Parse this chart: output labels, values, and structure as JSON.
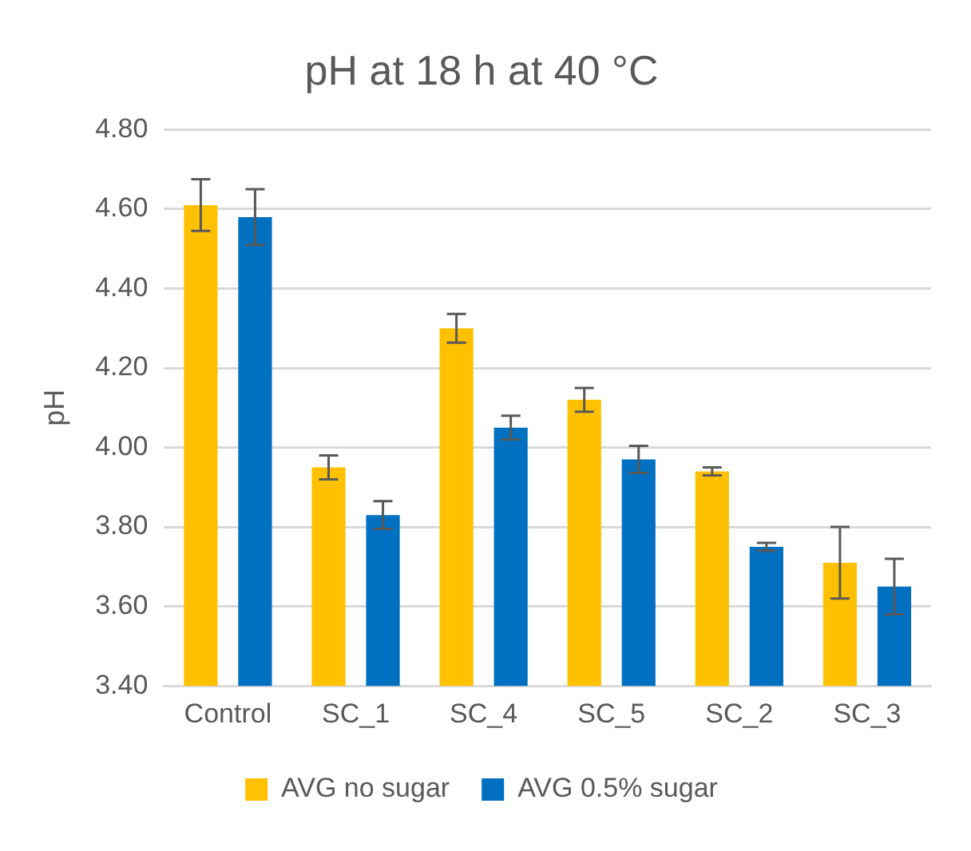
{
  "chart_data": {
    "type": "bar",
    "title": "pH at 18 h at 40 °C",
    "ylabel": "pH",
    "categories": [
      "Control",
      "SC_1",
      "SC_4",
      "SC_5",
      "SC_2",
      "SC_3"
    ],
    "series": [
      {
        "name": "AVG no sugar",
        "color": "#ffc000",
        "values": [
          4.61,
          3.95,
          4.3,
          4.12,
          3.94,
          3.71
        ],
        "errors": [
          0.065,
          0.03,
          0.036,
          0.03,
          0.01,
          0.09
        ]
      },
      {
        "name": "AVG 0.5% sugar",
        "color": "#0070c0",
        "values": [
          4.58,
          3.83,
          4.05,
          3.97,
          3.75,
          3.65
        ],
        "errors": [
          0.07,
          0.035,
          0.03,
          0.034,
          0.01,
          0.07
        ]
      }
    ],
    "ylim": [
      3.4,
      4.8
    ],
    "yticks": [
      {
        "value": 3.4,
        "label": "3.40"
      },
      {
        "value": 3.6,
        "label": "3.60"
      },
      {
        "value": 3.8,
        "label": "3.80"
      },
      {
        "value": 4.0,
        "label": "4.00"
      },
      {
        "value": 4.2,
        "label": "4.20"
      },
      {
        "value": 4.4,
        "label": "4.40"
      },
      {
        "value": 4.6,
        "label": "4.60"
      },
      {
        "value": 4.8,
        "label": "4.80"
      }
    ],
    "grid": "y",
    "legend": "bottom"
  }
}
